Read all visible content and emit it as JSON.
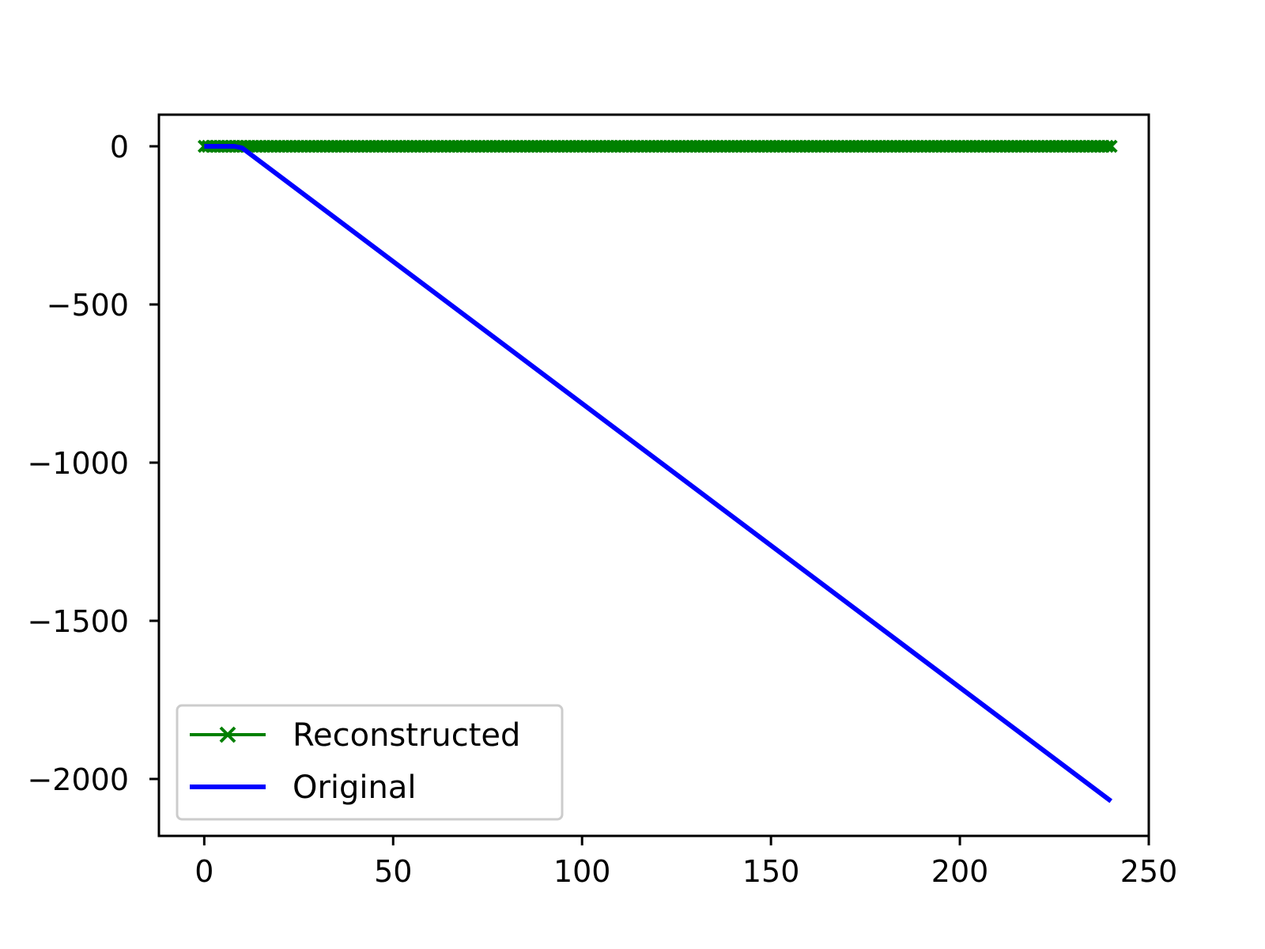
{
  "chart_data": {
    "type": "line",
    "title": "",
    "xlabel": "",
    "ylabel": "",
    "xlim": [
      -12,
      250
    ],
    "ylim": [
      -2180,
      100
    ],
    "xticks": [
      0,
      50,
      100,
      150,
      200,
      250
    ],
    "yticks": [
      0,
      -500,
      -1000,
      -1500,
      -2000
    ],
    "xtick_labels": [
      "0",
      "50",
      "100",
      "150",
      "200",
      "250"
    ],
    "ytick_labels": [
      "0",
      "−500",
      "−1000",
      "−1500",
      "−2000"
    ],
    "grid": false,
    "legend_position": "lower-left",
    "series": [
      {
        "name": "Reconstructed",
        "color": "#008000",
        "marker": "x",
        "x_range": [
          0,
          240
        ],
        "value": 0
      },
      {
        "name": "Original",
        "color": "#0000ff",
        "marker": "none",
        "x": [
          0,
          8,
          10,
          240
        ],
        "y": [
          0,
          0,
          -5,
          -2070
        ]
      }
    ]
  }
}
